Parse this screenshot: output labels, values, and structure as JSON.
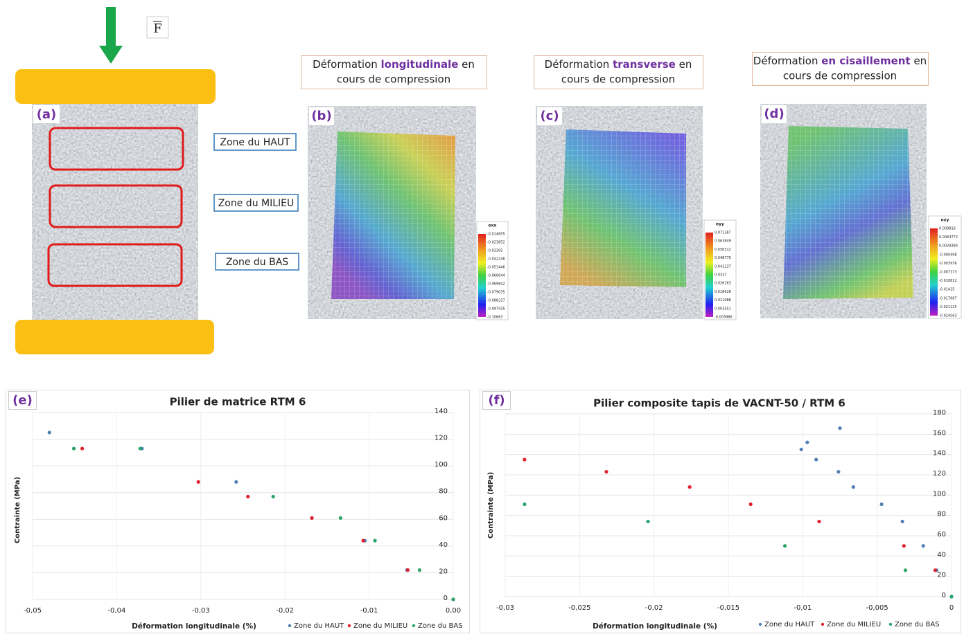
{
  "figure": {
    "force_label": "F",
    "panel_a": {
      "label": "(a)",
      "zones": [
        "Zone du HAUT",
        "Zone du MILIEU",
        "Zone du BAS"
      ]
    },
    "maps": [
      {
        "label": "(b)",
        "title": [
          "Déformation ",
          "longitudinale",
          " en"
        ],
        "title_line2": "cours de compression",
        "colorbar_title": "exx",
        "colorbar_labels": [
          "-0.014655",
          "-0.023852",
          "-0.03305",
          "-0.042246",
          "-0.051446",
          "-0.060644",
          "-0.069842",
          "-0.079035",
          "-0.088237",
          "-0.097435",
          "-0.10663"
        ]
      },
      {
        "label": "(c)",
        "title": [
          "Déformation ",
          "transverse",
          " en"
        ],
        "title_line2": "cours de compression",
        "colorbar_title": "eyy",
        "colorbar_labels": [
          "0.071387",
          "0.063849",
          "0.056312",
          "0.048775",
          "0.041237",
          "0.0337",
          "0.026163",
          "0.018626",
          "0.011088",
          "0.003551",
          "-0.003986"
        ]
      },
      {
        "label": "(d)",
        "title": [
          "Déformation ",
          "en cisaillement",
          " en"
        ],
        "title_line2": "cours de compression",
        "colorbar_title": "exy",
        "colorbar_labels": [
          "0.009816",
          "0.0063772",
          "0.0029384",
          "-0.000498",
          "-0.003936",
          "-0.007373",
          "-0.010812",
          "-0.01425",
          "-0.017687",
          "-0.021125",
          "-0.024563"
        ]
      }
    ]
  },
  "chart_data": [
    {
      "type": "scatter",
      "panel_label": "(e)",
      "title": "Pilier de matrice RTM 6",
      "xlabel": "Déformation longitudinale (%)",
      "ylabel": "Contrainte (MPa)",
      "xlim": [
        -0.05,
        0
      ],
      "ylim": [
        0,
        140
      ],
      "xticks": [
        {
          "value": -0.05,
          "label": "-0,05"
        },
        {
          "value": -0.04,
          "label": "-0,04"
        },
        {
          "value": -0.03,
          "label": "-0,03"
        },
        {
          "value": -0.02,
          "label": "-0,02"
        },
        {
          "value": -0.01,
          "label": "-0,01"
        },
        {
          "value": 0,
          "label": "0,00"
        }
      ],
      "yticks": [
        0,
        20,
        40,
        60,
        80,
        100,
        120,
        140
      ],
      "grid": true,
      "series": [
        {
          "name": "Zone du HAUT",
          "color": "#4f7fb5",
          "x": [
            -0.048,
            -0.037,
            -0.0258,
            -0.0168,
            -0.0105,
            -0.0055,
            0
          ],
          "values": [
            125,
            113,
            88,
            61,
            44,
            22,
            0
          ]
        },
        {
          "name": "Zone du MILIEU",
          "color": "#e0202a",
          "x": [
            -0.0441,
            -0.0303,
            -0.0244,
            -0.0168,
            -0.0107,
            -0.0054,
            0
          ],
          "values": [
            113,
            88,
            77,
            61,
            44,
            22,
            0
          ]
        },
        {
          "name": "Zone du BAS",
          "color": "#2aa36b",
          "x": [
            -0.0451,
            -0.0372,
            -0.0214,
            -0.0134,
            -0.0093,
            -0.004,
            0
          ],
          "values": [
            113,
            113,
            77,
            61,
            44,
            22,
            0
          ]
        }
      ]
    },
    {
      "type": "scatter",
      "panel_label": "(f)",
      "title": "Pilier composite tapis de VACNT-50 / RTM 6",
      "xlabel": "Déformation longitudinale (%)",
      "ylabel": "Contrainte (MPa)",
      "xlim": [
        -0.03,
        0
      ],
      "ylim": [
        0,
        180
      ],
      "xticks": [
        {
          "value": -0.03,
          "label": "-0,03"
        },
        {
          "value": -0.025,
          "label": "-0,025"
        },
        {
          "value": -0.02,
          "label": "-0,02"
        },
        {
          "value": -0.015,
          "label": "-0,015"
        },
        {
          "value": -0.01,
          "label": "-0,01"
        },
        {
          "value": -0.005,
          "label": "-0,005"
        },
        0
      ],
      "yticks": [
        0,
        20,
        40,
        60,
        80,
        100,
        120,
        140,
        160,
        180
      ],
      "grid": true,
      "series": [
        {
          "name": "Zone du HAUT",
          "color": "#4f7fb5",
          "x": [
            -0.0075,
            -0.0097,
            -0.0101,
            -0.0091,
            -0.0076,
            -0.0066,
            -0.0047,
            -0.0033,
            -0.0019,
            -0.001,
            0
          ],
          "values": [
            166,
            152,
            145,
            135,
            123,
            108,
            91,
            74,
            50,
            26,
            0
          ]
        },
        {
          "name": "Zone du MILIEU",
          "color": "#e0202a",
          "x": [
            -0.0287,
            -0.0232,
            -0.0176,
            -0.0135,
            -0.0089,
            -0.0032,
            -0.0011
          ],
          "values": [
            135,
            123,
            108,
            91,
            74,
            50,
            26
          ]
        },
        {
          "name": "Zone du BAS",
          "color": "#2aa36b",
          "x": [
            -0.0287,
            -0.0204,
            -0.0112,
            -0.0031,
            0
          ],
          "values": [
            91,
            74,
            50,
            26,
            0
          ]
        }
      ]
    }
  ]
}
